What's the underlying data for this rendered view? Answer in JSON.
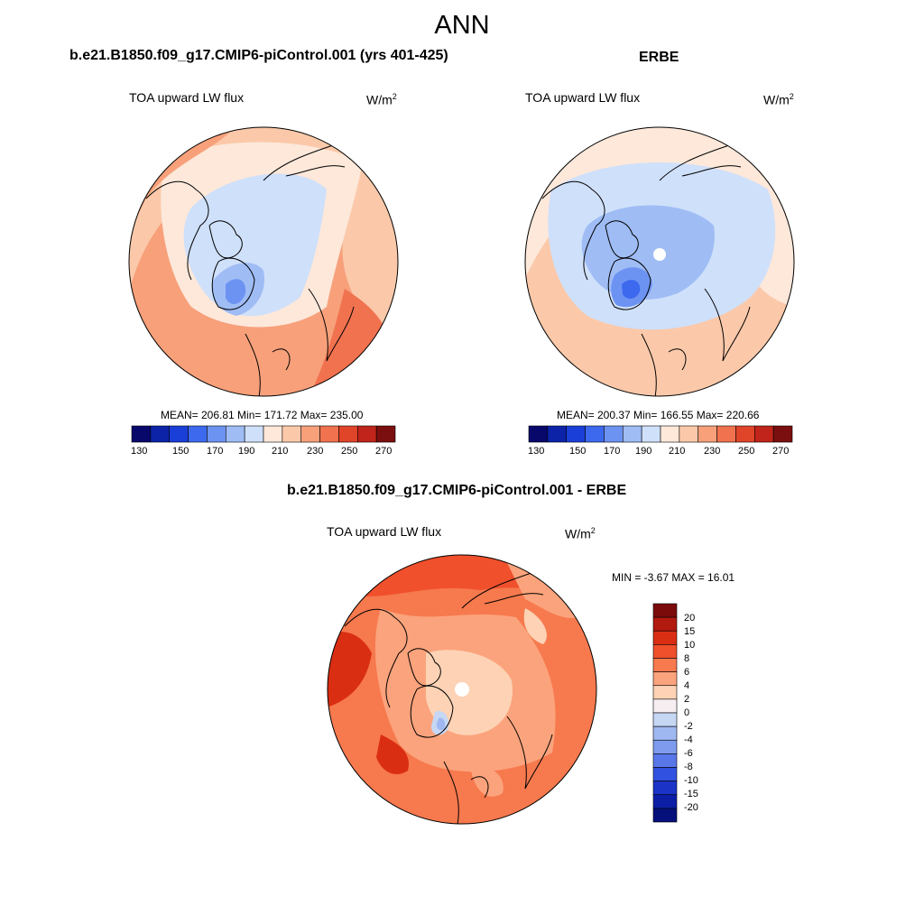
{
  "title": "ANN",
  "panels": [
    {
      "title": "b.e21.B1850.f09_g17.CMIP6-piControl.001 (yrs 401-425)",
      "variable": "TOA upward LW flux",
      "units_base": "W/m",
      "units_exp": "2",
      "stats": "MEAN= 206.81  Min= 171.72  Max= 235.00",
      "colorbar_labels": [
        "130",
        "150",
        "170",
        "190",
        "210",
        "230",
        "250",
        "270"
      ]
    },
    {
      "title": "ERBE",
      "variable": "TOA upward LW flux",
      "units_base": "W/m",
      "units_exp": "2",
      "stats": "MEAN= 200.37  Min= 166.55  Max= 220.66",
      "colorbar_labels": [
        "130",
        "150",
        "170",
        "190",
        "210",
        "230",
        "250",
        "270"
      ]
    },
    {
      "title": "b.e21.B1850.f09_g17.CMIP6-piControl.001 - ERBE",
      "variable": "TOA upward LW flux",
      "units_base": "W/m",
      "units_exp": "2",
      "stats": "MIN =  -3.67 MAX =  16.01",
      "colorbar_labels": [
        "20",
        "15",
        "10",
        "8",
        "6",
        "4",
        "2",
        "0",
        "-2",
        "-4",
        "-6",
        "-8",
        "-10",
        "-15",
        "-20"
      ]
    }
  ],
  "colors": {
    "abs_scale": [
      "#08086b",
      "#0c23a8",
      "#1a3fd9",
      "#3c69ee",
      "#6d93f2",
      "#9fbcf5",
      "#cfe0fa",
      "#fde8da",
      "#fbc9aa",
      "#f7a07a",
      "#f1724f",
      "#e0452a",
      "#c1241a",
      "#7b0f0f"
    ],
    "diff_scale": [
      "#7b0b0b",
      "#b2190f",
      "#da2e12",
      "#f0502c",
      "#f7794e",
      "#fba37c",
      "#fdd2b5",
      "#f6eef0",
      "#c6d7f4",
      "#9fb8f1",
      "#7e9bee",
      "#5977e9",
      "#3151e0",
      "#1b34c7",
      "#0c1ea5",
      "#05107a"
    ]
  }
}
